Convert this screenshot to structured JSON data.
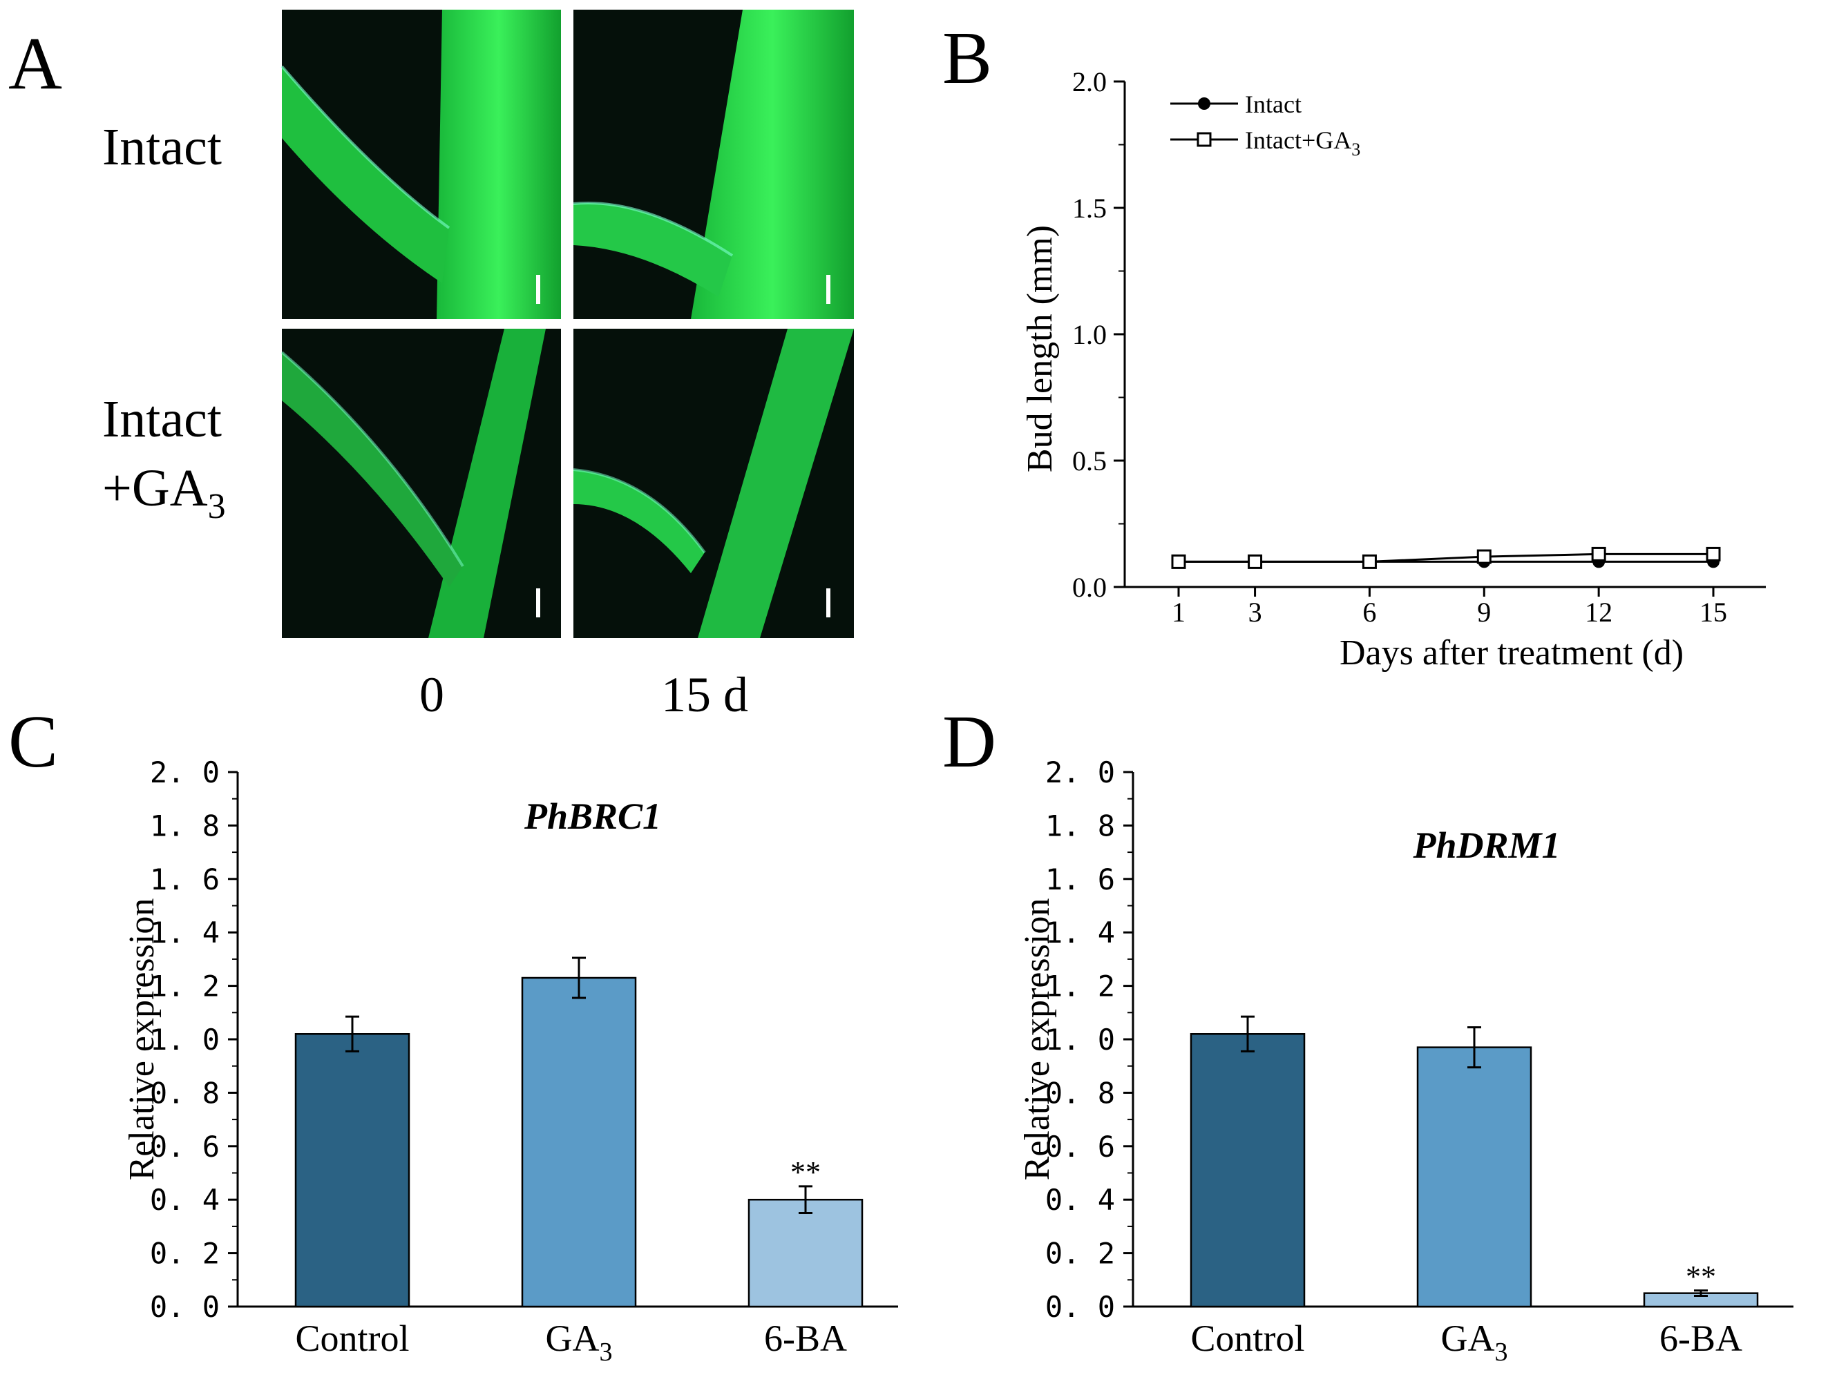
{
  "panel_a": {
    "letter": "A",
    "row_labels": [
      "Intact",
      "Intact",
      "+GA"
    ],
    "ga_subscript": "3",
    "col_labels": [
      "0",
      "15 d"
    ]
  },
  "chart_data": [
    {
      "panel": "B",
      "type": "line",
      "x": [
        1,
        3,
        6,
        9,
        12,
        15
      ],
      "xlabel": "Days after treatment (d)",
      "ylabel": "Bud length (mm)",
      "ylim": [
        0,
        2.0
      ],
      "yticks": [
        "0.0",
        "0.5",
        "1.0",
        "1.5",
        "2.0"
      ],
      "xticks": [
        "1",
        "3",
        "6",
        "9",
        "12",
        "15"
      ],
      "legend_position": "top-left",
      "series": [
        {
          "name": "Intact",
          "marker": "filled-circle",
          "values": [
            0.1,
            0.1,
            0.1,
            0.1,
            0.1,
            0.1
          ]
        },
        {
          "name": "Intact+GA",
          "name_subscript": "3",
          "marker": "open-square",
          "values": [
            0.1,
            0.1,
            0.1,
            0.12,
            0.13,
            0.13
          ]
        }
      ]
    },
    {
      "panel": "C",
      "type": "bar",
      "title": "PhBRC1",
      "ylabel": "Relative expression",
      "ylim": [
        0,
        2.0
      ],
      "yticks": [
        "0. 0",
        "0. 2",
        "0. 4",
        "0. 6",
        "0. 8",
        "1. 0",
        "1. 2",
        "1. 4",
        "1. 6",
        "1. 8",
        "2. 0"
      ],
      "categories": [
        "Control",
        "GA",
        "6-BA"
      ],
      "category_subscripts": [
        "",
        "3",
        ""
      ],
      "values": [
        1.02,
        1.23,
        0.4
      ],
      "errors": [
        0.065,
        0.075,
        0.05
      ],
      "significance": [
        "",
        "",
        "**"
      ],
      "colors": [
        "#2b6284",
        "#5b9bc7",
        "#9dc3e0"
      ]
    },
    {
      "panel": "D",
      "type": "bar",
      "title": "PhDRM1",
      "ylabel": "Relative expression",
      "ylim": [
        0,
        2.0
      ],
      "yticks": [
        "0. 0",
        "0. 2",
        "0. 4",
        "0. 6",
        "0. 8",
        "1. 0",
        "1. 2",
        "1. 4",
        "1. 6",
        "1. 8",
        "2. 0"
      ],
      "categories": [
        "Control",
        "GA",
        "6-BA"
      ],
      "category_subscripts": [
        "",
        "3",
        ""
      ],
      "values": [
        1.02,
        0.97,
        0.05
      ],
      "errors": [
        0.065,
        0.075,
        0.01
      ],
      "significance": [
        "",
        "",
        "**"
      ],
      "colors": [
        "#2b6284",
        "#5b9bc7",
        "#9dc3e0"
      ]
    }
  ]
}
